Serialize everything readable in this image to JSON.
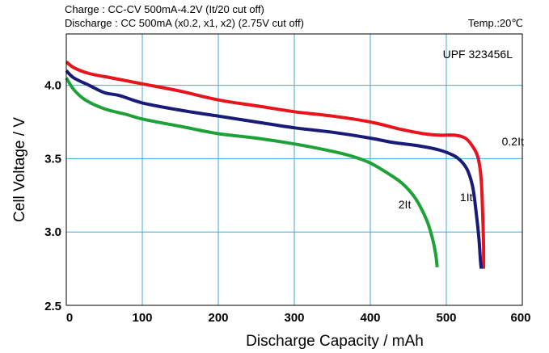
{
  "chart_data": {
    "type": "line",
    "header_line1": "Charge : CC-CV 500mA-4.2V (It/20 cut off)",
    "header_line2": "Discharge : CC 500mA (x0.2, x1, x2) (2.75V cut off)",
    "temp": "Temp.:20℃",
    "model_label": "UPF 323456L",
    "xlabel": "Discharge Capacity / mAh",
    "ylabel": "Cell Voltage / V",
    "xlim": [
      0,
      600
    ],
    "ylim": [
      2.5,
      4.35
    ],
    "x_ticks": [
      0,
      100,
      200,
      300,
      400,
      500,
      600
    ],
    "x_tick_labels": [
      "0",
      "100",
      "200",
      "300",
      "400",
      "500",
      "600"
    ],
    "y_ticks": [
      2.5,
      3.0,
      3.5,
      4.0
    ],
    "y_tick_labels": [
      "2.5",
      "3.0",
      "3.5",
      "4.0"
    ],
    "grid": true,
    "series": [
      {
        "name": "0.2It",
        "color": "#e8141c",
        "x": [
          0,
          10,
          30,
          60,
          100,
          150,
          200,
          250,
          300,
          350,
          400,
          440,
          470,
          490,
          510,
          525,
          535,
          542,
          546,
          548,
          549,
          549
        ],
        "y": [
          4.16,
          4.12,
          4.08,
          4.05,
          4.01,
          3.96,
          3.9,
          3.86,
          3.82,
          3.79,
          3.75,
          3.7,
          3.67,
          3.66,
          3.66,
          3.64,
          3.58,
          3.5,
          3.35,
          3.1,
          2.9,
          2.75
        ]
      },
      {
        "name": "1It",
        "color": "#1a1a78",
        "x": [
          0,
          10,
          30,
          50,
          70,
          100,
          150,
          200,
          250,
          300,
          350,
          400,
          430,
          460,
          490,
          510,
          520,
          528,
          535,
          540,
          543,
          545,
          546
        ],
        "y": [
          4.1,
          4.05,
          4.0,
          3.95,
          3.93,
          3.88,
          3.83,
          3.79,
          3.75,
          3.71,
          3.68,
          3.64,
          3.61,
          3.59,
          3.56,
          3.52,
          3.48,
          3.42,
          3.3,
          3.1,
          2.95,
          2.8,
          2.75
        ]
      },
      {
        "name": "2It",
        "color": "#1fa13a",
        "x": [
          0,
          10,
          25,
          50,
          80,
          100,
          150,
          200,
          250,
          300,
          350,
          380,
          400,
          420,
          440,
          455,
          465,
          475,
          482,
          486,
          488
        ],
        "y": [
          4.05,
          3.97,
          3.9,
          3.84,
          3.8,
          3.77,
          3.72,
          3.67,
          3.64,
          3.6,
          3.55,
          3.51,
          3.47,
          3.41,
          3.34,
          3.26,
          3.18,
          3.07,
          2.95,
          2.85,
          2.76
        ]
      }
    ],
    "annotations": [
      {
        "text": "0.2It",
        "x": 573,
        "y": 3.59
      },
      {
        "text": "1It",
        "x": 518,
        "y": 3.21
      },
      {
        "text": "2It",
        "x": 437,
        "y": 3.16
      }
    ]
  }
}
